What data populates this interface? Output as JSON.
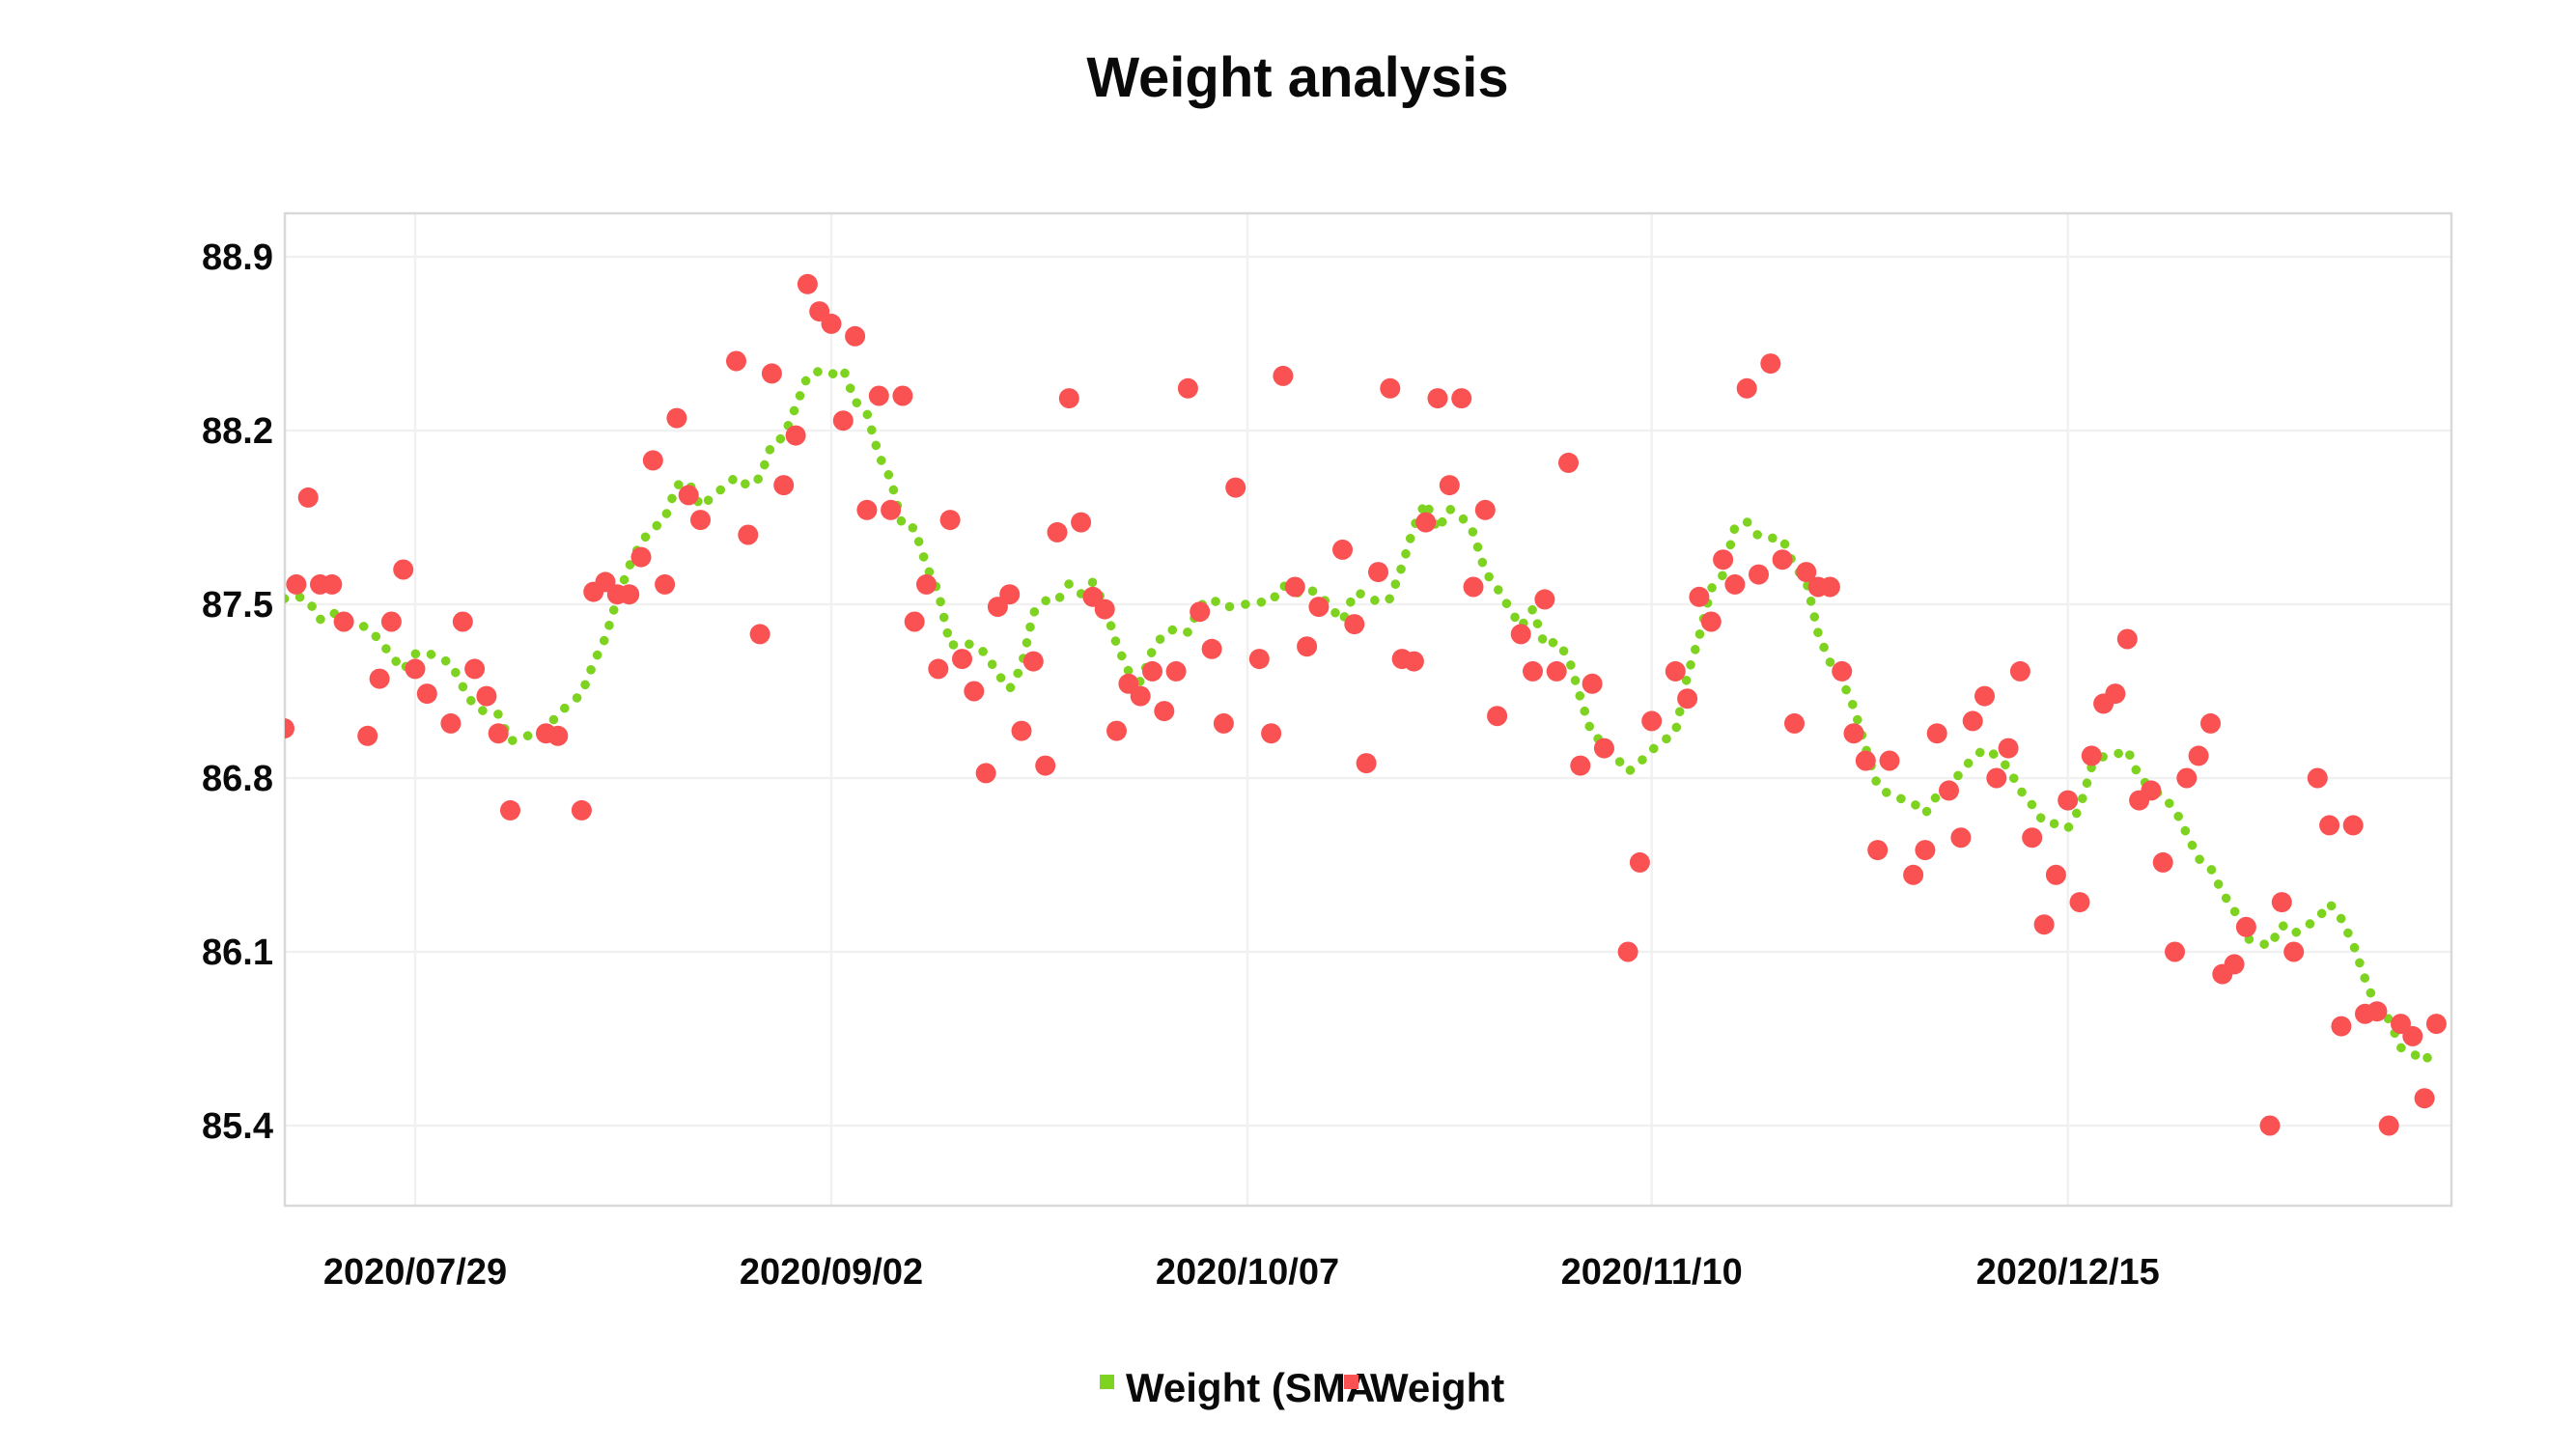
{
  "title": "Weight analysis",
  "legend": {
    "items": [
      {
        "label": "Weight (SMA",
        "color": "#7ED321",
        "marker": "square"
      },
      {
        "label": "Weight",
        "color": "#FA5252",
        "marker": "square"
      }
    ],
    "position": "bottom-center"
  },
  "colors": {
    "sma_line": "#7ED321",
    "weight_dot": "#FA5252",
    "gridline": "#F1F1F1",
    "plot_border": "#D9D9D9",
    "text": "#0a0a0a",
    "background": "#FFFFFF"
  },
  "chart_data": {
    "type": "scatter",
    "title": "Weight analysis",
    "xlabel": "",
    "ylabel": "",
    "grid": true,
    "legend_position": "bottom",
    "y_ticks": [
      "88.9",
      "88.2",
      "87.5",
      "86.8",
      "86.1",
      "85.4"
    ],
    "x_ticks": [
      "2020/07/29",
      "2020/09/02",
      "2020/10/07",
      "2020/11/10",
      "2020/12/15"
    ],
    "ylim": [
      85.08,
      89.08
    ],
    "x_tick_interval_days": 35,
    "series": [
      {
        "name": "Weight",
        "type": "scatter",
        "color": "#FA5252",
        "points": [
          [
            "2020/07/18",
            87.0
          ],
          [
            "2020/07/19",
            87.58
          ],
          [
            "2020/07/20",
            87.93
          ],
          [
            "2020/07/21",
            87.58
          ],
          [
            "2020/07/22",
            87.58
          ],
          [
            "2020/07/23",
            87.43
          ],
          [
            "2020/07/25",
            86.97
          ],
          [
            "2020/07/26",
            87.2
          ],
          [
            "2020/07/27",
            87.43
          ],
          [
            "2020/07/28",
            87.64
          ],
          [
            "2020/07/29",
            87.24
          ],
          [
            "2020/07/30",
            87.14
          ],
          [
            "2020/08/01",
            87.02
          ],
          [
            "2020/08/02",
            87.43
          ],
          [
            "2020/08/03",
            87.24
          ],
          [
            "2020/08/04",
            87.13
          ],
          [
            "2020/08/05",
            86.98
          ],
          [
            "2020/08/06",
            86.67
          ],
          [
            "2020/08/09",
            86.98
          ],
          [
            "2020/08/10",
            86.97
          ],
          [
            "2020/08/12",
            86.67
          ],
          [
            "2020/08/13",
            87.55
          ],
          [
            "2020/08/14",
            87.59
          ],
          [
            "2020/08/15",
            87.54
          ],
          [
            "2020/08/16",
            87.54
          ],
          [
            "2020/08/17",
            87.69
          ],
          [
            "2020/08/18",
            88.08
          ],
          [
            "2020/08/19",
            87.58
          ],
          [
            "2020/08/20",
            88.25
          ],
          [
            "2020/08/21",
            87.94
          ],
          [
            "2020/08/22",
            87.84
          ],
          [
            "2020/08/25",
            88.48
          ],
          [
            "2020/08/26",
            87.78
          ],
          [
            "2020/08/27",
            87.38
          ],
          [
            "2020/08/28",
            88.43
          ],
          [
            "2020/08/29",
            87.98
          ],
          [
            "2020/08/30",
            88.18
          ],
          [
            "2020/08/31",
            88.79
          ],
          [
            "2020/09/01",
            88.68
          ],
          [
            "2020/09/02",
            88.63
          ],
          [
            "2020/09/03",
            88.24
          ],
          [
            "2020/09/04",
            88.58
          ],
          [
            "2020/09/05",
            87.88
          ],
          [
            "2020/09/06",
            88.34
          ],
          [
            "2020/09/07",
            87.88
          ],
          [
            "2020/09/08",
            88.34
          ],
          [
            "2020/09/09",
            87.43
          ],
          [
            "2020/09/10",
            87.58
          ],
          [
            "2020/09/11",
            87.24
          ],
          [
            "2020/09/12",
            87.84
          ],
          [
            "2020/09/13",
            87.28
          ],
          [
            "2020/09/14",
            87.15
          ],
          [
            "2020/09/15",
            86.82
          ],
          [
            "2020/09/16",
            87.49
          ],
          [
            "2020/09/17",
            87.54
          ],
          [
            "2020/09/18",
            86.99
          ],
          [
            "2020/09/19",
            87.27
          ],
          [
            "2020/09/20",
            86.85
          ],
          [
            "2020/09/21",
            87.79
          ],
          [
            "2020/09/22",
            88.33
          ],
          [
            "2020/09/23",
            87.83
          ],
          [
            "2020/09/24",
            87.53
          ],
          [
            "2020/09/25",
            87.48
          ],
          [
            "2020/09/26",
            86.99
          ],
          [
            "2020/09/27",
            87.18
          ],
          [
            "2020/09/28",
            87.13
          ],
          [
            "2020/09/29",
            87.23
          ],
          [
            "2020/09/30",
            87.07
          ],
          [
            "2020/10/01",
            87.23
          ],
          [
            "2020/10/02",
            88.37
          ],
          [
            "2020/10/03",
            87.47
          ],
          [
            "2020/10/04",
            87.32
          ],
          [
            "2020/10/05",
            87.02
          ],
          [
            "2020/10/06",
            87.97
          ],
          [
            "2020/10/08",
            87.28
          ],
          [
            "2020/10/09",
            86.98
          ],
          [
            "2020/10/10",
            88.42
          ],
          [
            "2020/10/11",
            87.57
          ],
          [
            "2020/10/12",
            87.33
          ],
          [
            "2020/10/13",
            87.49
          ],
          [
            "2020/10/15",
            87.72
          ],
          [
            "2020/10/16",
            87.42
          ],
          [
            "2020/10/17",
            86.86
          ],
          [
            "2020/10/18",
            87.63
          ],
          [
            "2020/10/19",
            88.37
          ],
          [
            "2020/10/20",
            87.28
          ],
          [
            "2020/10/21",
            87.27
          ],
          [
            "2020/10/22",
            87.83
          ],
          [
            "2020/10/23",
            88.33
          ],
          [
            "2020/10/24",
            87.98
          ],
          [
            "2020/10/25",
            88.33
          ],
          [
            "2020/10/26",
            87.57
          ],
          [
            "2020/10/27",
            87.88
          ],
          [
            "2020/10/28",
            87.05
          ],
          [
            "2020/10/30",
            87.38
          ],
          [
            "2020/10/31",
            87.23
          ],
          [
            "2020/11/01",
            87.52
          ],
          [
            "2020/11/02",
            87.23
          ],
          [
            "2020/11/03",
            88.07
          ],
          [
            "2020/11/04",
            86.85
          ],
          [
            "2020/11/05",
            87.18
          ],
          [
            "2020/11/06",
            86.92
          ],
          [
            "2020/11/08",
            86.1
          ],
          [
            "2020/11/09",
            86.46
          ],
          [
            "2020/11/10",
            87.03
          ],
          [
            "2020/11/12",
            87.23
          ],
          [
            "2020/11/13",
            87.12
          ],
          [
            "2020/11/14",
            87.53
          ],
          [
            "2020/11/15",
            87.43
          ],
          [
            "2020/11/16",
            87.68
          ],
          [
            "2020/11/17",
            87.58
          ],
          [
            "2020/11/18",
            88.37
          ],
          [
            "2020/11/19",
            87.62
          ],
          [
            "2020/11/20",
            88.47
          ],
          [
            "2020/11/21",
            87.68
          ],
          [
            "2020/11/22",
            87.02
          ],
          [
            "2020/11/23",
            87.63
          ],
          [
            "2020/11/24",
            87.57
          ],
          [
            "2020/11/25",
            87.57
          ],
          [
            "2020/11/26",
            87.23
          ],
          [
            "2020/11/27",
            86.98
          ],
          [
            "2020/11/28",
            86.87
          ],
          [
            "2020/11/29",
            86.51
          ],
          [
            "2020/11/30",
            86.87
          ],
          [
            "2020/12/02",
            86.41
          ],
          [
            "2020/12/03",
            86.51
          ],
          [
            "2020/12/04",
            86.98
          ],
          [
            "2020/12/05",
            86.75
          ],
          [
            "2020/12/06",
            86.56
          ],
          [
            "2020/12/07",
            87.03
          ],
          [
            "2020/12/08",
            87.13
          ],
          [
            "2020/12/09",
            86.8
          ],
          [
            "2020/12/10",
            86.92
          ],
          [
            "2020/12/11",
            87.23
          ],
          [
            "2020/12/12",
            86.56
          ],
          [
            "2020/12/13",
            86.21
          ],
          [
            "2020/12/14",
            86.41
          ],
          [
            "2020/12/15",
            86.71
          ],
          [
            "2020/12/16",
            86.3
          ],
          [
            "2020/12/17",
            86.89
          ],
          [
            "2020/12/18",
            87.1
          ],
          [
            "2020/12/19",
            87.14
          ],
          [
            "2020/12/20",
            87.36
          ],
          [
            "2020/12/21",
            86.71
          ],
          [
            "2020/12/22",
            86.75
          ],
          [
            "2020/12/23",
            86.46
          ],
          [
            "2020/12/24",
            86.1
          ],
          [
            "2020/12/25",
            86.8
          ],
          [
            "2020/12/26",
            86.89
          ],
          [
            "2020/12/27",
            87.02
          ],
          [
            "2020/12/28",
            86.01
          ],
          [
            "2020/12/29",
            86.05
          ],
          [
            "2020/12/30",
            86.2
          ],
          [
            "2021/01/01",
            85.4
          ],
          [
            "2021/01/02",
            86.3
          ],
          [
            "2021/01/03",
            86.1
          ],
          [
            "2021/01/05",
            86.8
          ],
          [
            "2021/01/06",
            86.61
          ],
          [
            "2021/01/07",
            85.8
          ],
          [
            "2021/01/08",
            86.61
          ],
          [
            "2021/01/09",
            85.85
          ],
          [
            "2021/01/10",
            85.86
          ],
          [
            "2021/01/11",
            85.4
          ],
          [
            "2021/01/12",
            85.81
          ],
          [
            "2021/01/13",
            85.76
          ],
          [
            "2021/01/14",
            85.51
          ],
          [
            "2021/01/15",
            85.81
          ]
        ]
      },
      {
        "name": "Weight (SMA",
        "type": "dotted-line",
        "color": "#7ED321",
        "derivation": "7-point centered moving average of the Weight series"
      }
    ]
  }
}
